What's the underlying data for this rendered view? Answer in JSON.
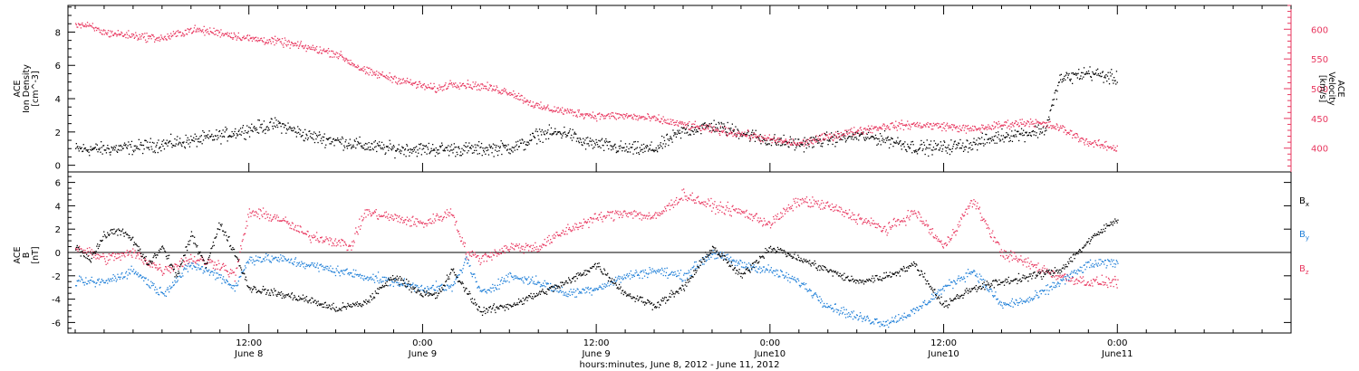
{
  "chart_data": [
    {
      "type": "scatter",
      "panel": "top",
      "ylabel_left": [
        "ACE",
        "Ion Density",
        "[cm^-3]"
      ],
      "ylabel_right": [
        "ACE",
        "Velocity",
        "[km/s]"
      ],
      "ylim_left": [
        -0.4,
        9.6
      ],
      "ylim_right": [
        360,
        640
      ],
      "yticks_left": [
        0,
        2,
        4,
        6,
        8
      ],
      "yticks_right": [
        400,
        450,
        500,
        550,
        600
      ],
      "colors": {
        "density": "#000000",
        "velocity": "#e8375f"
      },
      "series": [
        {
          "name": "",
          "axis": "left",
          "color": "#000000",
          "x": [
            0,
            2,
            4,
            6,
            7,
            8,
            10,
            12,
            14,
            16,
            18,
            20,
            22,
            24,
            26,
            28,
            30,
            31,
            32,
            34,
            35,
            36,
            38,
            40,
            42,
            44,
            46,
            48,
            50,
            52,
            54,
            56,
            58,
            60,
            62,
            64,
            66,
            67,
            68,
            70,
            72
          ],
          "y": [
            1.0,
            1.0,
            1.1,
            1.3,
            1.4,
            1.5,
            1.8,
            2.2,
            2.5,
            1.8,
            1.5,
            1.2,
            1.0,
            1.0,
            1.0,
            1.0,
            1.1,
            1.3,
            1.9,
            2.0,
            1.4,
            1.3,
            1.0,
            1.0,
            2.1,
            2.4,
            2.0,
            1.5,
            1.3,
            1.6,
            1.8,
            1.6,
            1.1,
            1.1,
            1.3,
            1.8,
            2.0,
            2.2,
            5.2,
            5.6,
            5.2
          ]
        },
        {
          "name": "",
          "axis": "right",
          "color": "#e8375f",
          "x": [
            0,
            1,
            2,
            4,
            6,
            8,
            10,
            12,
            14,
            16,
            18,
            20,
            22,
            24,
            25,
            26,
            28,
            30,
            32,
            34,
            36,
            38,
            40,
            42,
            44,
            46,
            48,
            50,
            52,
            54,
            56,
            58,
            60,
            62,
            64,
            66,
            68,
            70,
            72
          ],
          "y": [
            610,
            605,
            595,
            590,
            585,
            600,
            595,
            585,
            580,
            570,
            560,
            530,
            518,
            505,
            500,
            510,
            505,
            495,
            470,
            462,
            455,
            455,
            450,
            440,
            432,
            425,
            415,
            408,
            420,
            430,
            438,
            440,
            438,
            432,
            440,
            445,
            435,
            410,
            400
          ]
        }
      ]
    },
    {
      "type": "scatter",
      "panel": "bottom",
      "ylabel_left": [
        "ACE",
        "B",
        "[nT]"
      ],
      "ylim": [
        -6.9,
        6.9
      ],
      "yticks": [
        -6,
        -4,
        -2,
        0,
        2,
        4,
        6
      ],
      "zero_line": true,
      "legend": [
        {
          "label": "B",
          "sub": "x",
          "color": "#000000"
        },
        {
          "label": "B",
          "sub": "y",
          "color": "#1f7fd8"
        },
        {
          "label": "B",
          "sub": "z",
          "color": "#e8375f"
        }
      ],
      "series": [
        {
          "name": "Bx",
          "color": "#000000",
          "x": [
            0,
            1,
            2,
            3,
            4,
            5,
            6,
            7,
            8,
            9,
            10,
            11,
            12,
            14,
            16,
            18,
            20,
            22,
            24,
            25,
            26,
            28,
            30,
            32,
            34,
            36,
            38,
            40,
            42,
            44,
            46,
            48,
            50,
            52,
            54,
            56,
            58,
            60,
            62,
            64,
            66,
            68,
            70,
            72
          ],
          "y": [
            0.5,
            -0.5,
            1.5,
            2.0,
            1.0,
            -1.0,
            0.5,
            -2.0,
            1.5,
            -1.0,
            2.5,
            0.0,
            -3.0,
            -3.5,
            -4.0,
            -4.8,
            -4.3,
            -2.0,
            -3.5,
            -3.7,
            -1.5,
            -5.0,
            -4.5,
            -3.5,
            -2.5,
            -1.0,
            -3.5,
            -4.5,
            -3.0,
            0.5,
            -2.0,
            0.5,
            -0.5,
            -1.5,
            -2.5,
            -2.0,
            -1.0,
            -4.5,
            -3.0,
            -2.5,
            -2.0,
            -1.5,
            1.0,
            3.0
          ]
        },
        {
          "name": "By",
          "color": "#1f7fd8",
          "x": [
            0,
            2,
            4,
            6,
            8,
            10,
            11,
            12,
            14,
            16,
            18,
            20,
            22,
            24,
            26,
            27,
            28,
            30,
            32,
            34,
            36,
            38,
            40,
            42,
            44,
            46,
            48,
            50,
            52,
            54,
            56,
            58,
            60,
            62,
            64,
            66,
            68,
            70,
            72
          ],
          "y": [
            -2.5,
            -2.5,
            -1.5,
            -3.5,
            -1.0,
            -2.0,
            -3.0,
            -0.5,
            -0.5,
            -1.0,
            -1.5,
            -2.0,
            -2.5,
            -3.0,
            -3.0,
            -0.5,
            -3.5,
            -2.0,
            -2.5,
            -3.5,
            -3.0,
            -2.0,
            -1.5,
            -2.0,
            0.0,
            -1.0,
            -1.5,
            -2.5,
            -4.5,
            -5.5,
            -6.0,
            -5.0,
            -3.0,
            -1.5,
            -4.5,
            -4.0,
            -2.5,
            -1.0,
            -0.8
          ]
        },
        {
          "name": "Bz",
          "color": "#e8375f",
          "x": [
            0,
            2,
            4,
            6,
            8,
            10,
            11,
            12,
            14,
            16,
            18,
            19,
            20,
            22,
            24,
            26,
            27,
            28,
            30,
            32,
            34,
            36,
            38,
            40,
            42,
            44,
            46,
            48,
            50,
            52,
            54,
            56,
            58,
            60,
            62,
            64,
            66,
            68,
            70,
            72
          ],
          "y": [
            0.5,
            -0.5,
            0.0,
            -1.5,
            -0.5,
            -1.0,
            -2.0,
            3.5,
            3.0,
            1.5,
            1.0,
            0.5,
            3.5,
            3.0,
            2.5,
            3.5,
            0.0,
            -0.5,
            0.5,
            0.5,
            2.0,
            3.0,
            3.5,
            3.0,
            5.0,
            4.0,
            3.5,
            2.5,
            4.5,
            4.0,
            3.0,
            2.0,
            3.5,
            0.5,
            4.5,
            0.0,
            -1.0,
            -2.0,
            -2.5,
            -2.5
          ]
        }
      ]
    }
  ],
  "x_axis": {
    "ticks": [
      {
        "line1": "12:00",
        "line2": "June 8"
      },
      {
        "line1": "0:00",
        "line2": "June 9"
      },
      {
        "line1": "12:00",
        "line2": "June 9"
      },
      {
        "line1": "0:00",
        "line2": "June10"
      },
      {
        "line1": "12:00",
        "line2": "June10"
      },
      {
        "line1": "0:00",
        "line2": "June11"
      }
    ],
    "tick_hours": [
      12,
      24,
      36,
      48,
      60,
      72
    ],
    "range_hours": [
      -0.5,
      84
    ],
    "xlabel": "hours:minutes, June  8, 2012 - June 11, 2012"
  }
}
